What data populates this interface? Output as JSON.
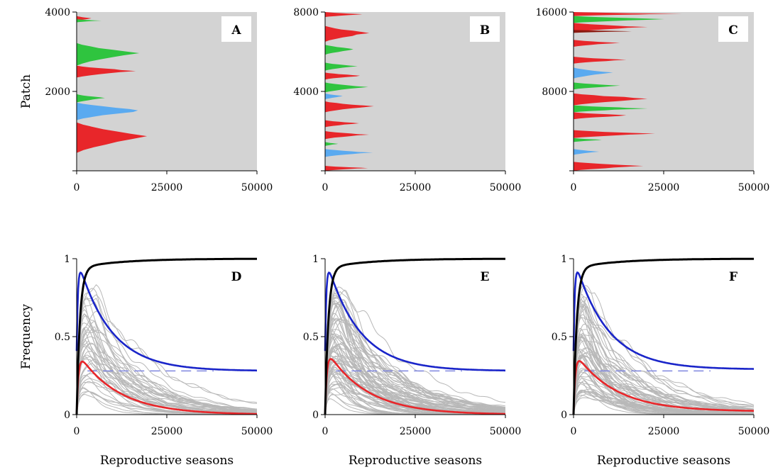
{
  "colors": {
    "background_gray": "#d3d3d3",
    "red": "#e8262a",
    "green": "#2fc43f",
    "light_blue": "#5aaaf0",
    "dark_red": "#8b1a10",
    "gray_line": "#b8b8b8",
    "blue": "#1a25c9",
    "black": "#000000",
    "dashed_blue": "#7f86e0"
  },
  "chart_data": [
    {
      "id": "A",
      "type": "area",
      "panel_label": "A",
      "ylabel": "Patch",
      "xlabel": "",
      "xlim": [
        0,
        50000
      ],
      "ylim": [
        0,
        4000
      ],
      "xticks": [
        "0",
        "25000",
        "50000"
      ],
      "yticks": [
        "2000",
        "4000"
      ],
      "regions": [
        {
          "color": "red",
          "y": [
            3770,
            3900
          ],
          "x_extent": 4500
        },
        {
          "color": "green",
          "y": [
            3740,
            3820
          ],
          "x_extent": 7000
        },
        {
          "color": "red",
          "y": [
            2350,
            2650
          ],
          "x_extent": 18000
        },
        {
          "color": "green",
          "y": [
            2650,
            3220
          ],
          "x_extent": 17500
        },
        {
          "color": "green",
          "y": [
            1720,
            1930
          ],
          "x_extent": 8500
        },
        {
          "color": "light_blue",
          "y": [
            1280,
            1720
          ],
          "x_extent": 20000
        },
        {
          "color": "red",
          "y": [
            450,
            1220
          ],
          "x_extent": 21000
        }
      ]
    },
    {
      "id": "B",
      "type": "area",
      "panel_label": "B",
      "ylabel": "",
      "xlabel": "",
      "xlim": [
        0,
        50000
      ],
      "ylim": [
        0,
        8000
      ],
      "xticks": [
        "0",
        "25000",
        "50000"
      ],
      "yticks": [
        "4000",
        "8000"
      ],
      "regions": [
        {
          "color": "red",
          "y": [
            7750,
            8000
          ],
          "x_extent": 12000
        },
        {
          "color": "red",
          "y": [
            6500,
            7300
          ],
          "x_extent": 13000
        },
        {
          "color": "green",
          "y": [
            5850,
            6350
          ],
          "x_extent": 9000
        },
        {
          "color": "green",
          "y": [
            5050,
            5450
          ],
          "x_extent": 9500
        },
        {
          "color": "red",
          "y": [
            4600,
            4950
          ],
          "x_extent": 11000
        },
        {
          "color": "green",
          "y": [
            3950,
            4450
          ],
          "x_extent": 12500
        },
        {
          "color": "light_blue",
          "y": [
            3600,
            3900
          ],
          "x_extent": 5500
        },
        {
          "color": "red",
          "y": [
            2950,
            3500
          ],
          "x_extent": 14000
        },
        {
          "color": "red",
          "y": [
            2200,
            2550
          ],
          "x_extent": 10500
        },
        {
          "color": "red",
          "y": [
            1600,
            2000
          ],
          "x_extent": 12500
        },
        {
          "color": "green",
          "y": [
            1250,
            1450
          ],
          "x_extent": 4000
        },
        {
          "color": "light_blue",
          "y": [
            700,
            1100
          ],
          "x_extent": 13500
        },
        {
          "color": "red",
          "y": [
            0,
            250
          ],
          "x_extent": 13000
        }
      ]
    },
    {
      "id": "C",
      "type": "area",
      "panel_label": "C",
      "ylabel": "",
      "xlabel": "",
      "xlim": [
        0,
        50000
      ],
      "ylim": [
        0,
        16000
      ],
      "xticks": [
        "0",
        "25000",
        "50000"
      ],
      "yticks": [
        "8000",
        "16000"
      ],
      "regions": [
        {
          "color": "red",
          "y": [
            15600,
            16000
          ],
          "x_extent": 31000
        },
        {
          "color": "green",
          "y": [
            14900,
            15600
          ],
          "x_extent": 28000
        },
        {
          "color": "red",
          "y": [
            14000,
            14900
          ],
          "x_extent": 21000
        },
        {
          "color": "dark_red",
          "y": [
            13900,
            14200
          ],
          "x_extent": 18000
        },
        {
          "color": "red",
          "y": [
            12500,
            13200
          ],
          "x_extent": 13000
        },
        {
          "color": "red",
          "y": [
            10800,
            11500
          ],
          "x_extent": 16000
        },
        {
          "color": "light_blue",
          "y": [
            9300,
            10400
          ],
          "x_extent": 11000
        },
        {
          "color": "green",
          "y": [
            8200,
            8900
          ],
          "x_extent": 14000
        },
        {
          "color": "red",
          "y": [
            6600,
            7800
          ],
          "x_extent": 24000
        },
        {
          "color": "green",
          "y": [
            5900,
            6600
          ],
          "x_extent": 22000
        },
        {
          "color": "red",
          "y": [
            5200,
            5900
          ],
          "x_extent": 17000
        },
        {
          "color": "red",
          "y": [
            3300,
            4100
          ],
          "x_extent": 24000
        },
        {
          "color": "green",
          "y": [
            2900,
            3300
          ],
          "x_extent": 9000
        },
        {
          "color": "light_blue",
          "y": [
            1600,
            2200
          ],
          "x_extent": 7500
        },
        {
          "color": "red",
          "y": [
            0,
            900
          ],
          "x_extent": 22000
        }
      ]
    },
    {
      "id": "D",
      "type": "line",
      "panel_label": "D",
      "ylabel": "Frequency",
      "xlabel": "Reproductive seasons",
      "xlim": [
        0,
        50000
      ],
      "ylim": [
        0,
        1
      ],
      "xticks": [
        "0",
        "25000",
        "50000"
      ],
      "yticks": [
        "0",
        "0.5",
        "1"
      ],
      "blue_final": 0.28,
      "red_peak": 0.41,
      "red_end": 0.0,
      "dashed_y": 0.28,
      "gray_series_count": 45,
      "gray_seed": 3
    },
    {
      "id": "E",
      "type": "line",
      "panel_label": "E",
      "ylabel": "",
      "xlabel": "Reproductive seasons",
      "xlim": [
        0,
        50000
      ],
      "ylim": [
        0,
        1
      ],
      "xticks": [
        "0",
        "25000",
        "50000"
      ],
      "yticks": [
        "0",
        "0.5",
        "1"
      ],
      "blue_final": 0.28,
      "red_peak": 0.43,
      "red_end": 0.0,
      "dashed_y": 0.28,
      "gray_series_count": 80,
      "gray_seed": 11
    },
    {
      "id": "F",
      "type": "line",
      "panel_label": "F",
      "ylabel": "",
      "xlabel": "Reproductive seasons",
      "xlim": [
        0,
        50000
      ],
      "ylim": [
        0,
        1
      ],
      "xticks": [
        "0",
        "25000",
        "50000"
      ],
      "yticks": [
        "0",
        "0.5",
        "1"
      ],
      "blue_final": 0.29,
      "red_peak": 0.41,
      "red_end": 0.02,
      "dashed_y": 0.28,
      "gray_series_count": 65,
      "gray_seed": 23
    }
  ]
}
